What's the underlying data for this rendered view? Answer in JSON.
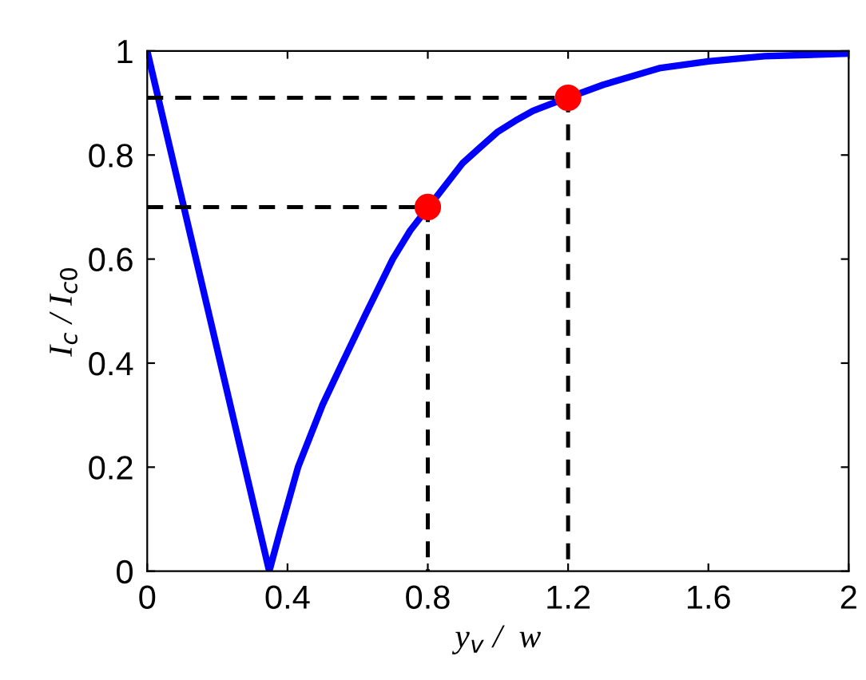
{
  "chart_data": {
    "type": "line",
    "xlabel": "y$_{v}$ /  w",
    "ylabel": "I$_{c}$ / I$_{c0}$",
    "xlim": [
      0,
      2
    ],
    "ylim": [
      0,
      1
    ],
    "xticks": [
      0,
      0.4,
      0.8,
      1.2,
      1.6,
      2
    ],
    "yticks": [
      0,
      0.2,
      0.4,
      0.6,
      0.8,
      1
    ],
    "grid": false,
    "legend": false,
    "series": [
      {
        "color": "#0000ff",
        "line_style": "solid",
        "marker": "none",
        "x": [
          0,
          0.348,
          0.38,
          0.43,
          0.5,
          0.556,
          0.62,
          0.7,
          0.75,
          0.9,
          0.95,
          1.0,
          1.05,
          1.1,
          1.15,
          1.3,
          1.4,
          1.46,
          1.6,
          1.76,
          2.0
        ],
        "values": [
          1,
          0,
          0.08,
          0.2,
          0.32,
          0.4,
          0.49,
          0.6,
          0.655,
          0.785,
          0.815,
          0.845,
          0.866,
          0.885,
          0.898,
          0.935,
          0.955,
          0.967,
          0.98,
          0.99,
          0.995
        ]
      },
      {
        "color": "#000000",
        "line_style": "dashed",
        "marker": "none",
        "x": [
          0,
          0.8,
          0.8
        ],
        "values": [
          0.7,
          0.7,
          0
        ]
      },
      {
        "color": "#000000",
        "line_style": "dashed",
        "marker": "none",
        "x": [
          0,
          1.2,
          1.2
        ],
        "values": [
          0.91,
          0.91,
          0
        ]
      },
      {
        "type": "scatter",
        "color": "#ff0000",
        "marker": "circle",
        "x": [
          0.8,
          1.2
        ],
        "values": [
          0.7,
          0.91
        ]
      }
    ]
  }
}
